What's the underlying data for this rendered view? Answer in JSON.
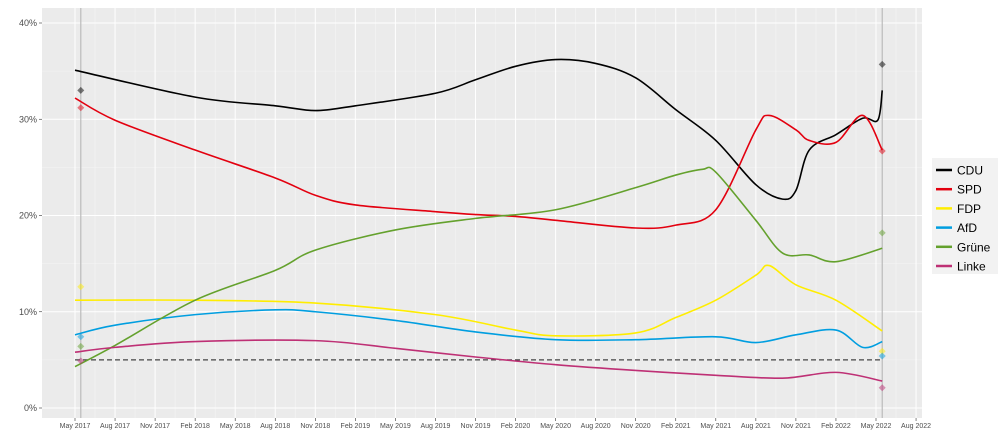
{
  "chart_data": {
    "type": "line",
    "title": "",
    "xlabel": "",
    "ylabel": "",
    "ylim": [
      0,
      40
    ],
    "yticks": [
      "0%",
      "10%",
      "20%",
      "30%",
      "40%"
    ],
    "xticks": [
      "May 2017",
      "Aug 2017",
      "Nov 2017",
      "Feb 2018",
      "May 2018",
      "Aug 2018",
      "Nov 2018",
      "Feb 2019",
      "May 2019",
      "Aug 2019",
      "Nov 2019",
      "Feb 2020",
      "May 2020",
      "Aug 2020",
      "Nov 2020",
      "Feb 2021",
      "May 2021",
      "Aug 2021",
      "Nov 2021",
      "Feb 2022",
      "May 2022",
      "Aug 2022"
    ],
    "xtick_dates": [
      "2017-05",
      "2017-08",
      "2017-11",
      "2018-02",
      "2018-05",
      "2018-08",
      "2018-11",
      "2019-02",
      "2019-05",
      "2019-08",
      "2019-11",
      "2020-02",
      "2020-05",
      "2020-08",
      "2020-11",
      "2021-02",
      "2021-05",
      "2021-08",
      "2021-11",
      "2022-02",
      "2022-05",
      "2022-08"
    ],
    "grid": true,
    "legend_position": "right",
    "threshold_line": 5,
    "election_dates": [
      "2017-05-14",
      "2022-05-15"
    ],
    "series": [
      {
        "name": "CDU",
        "color": "#000000",
        "x": [
          "2017-05",
          "2018-02",
          "2018-08",
          "2018-11",
          "2019-02",
          "2019-08",
          "2019-11",
          "2020-02",
          "2020-05",
          "2020-08",
          "2020-11",
          "2021-02",
          "2021-05",
          "2021-08",
          "2021-10",
          "2021-11",
          "2021-12",
          "2022-02",
          "2022-04",
          "2022-05-05",
          "2022-05-15"
        ],
        "y": [
          35.1,
          32.3,
          31.4,
          30.9,
          31.4,
          32.7,
          34.1,
          35.5,
          36.2,
          35.8,
          34.3,
          31.0,
          27.8,
          23.2,
          21.7,
          22.6,
          26.8,
          28.4,
          30.1,
          29.9,
          33.0
        ],
        "election_results": [
          33.0,
          35.7
        ]
      },
      {
        "name": "SPD",
        "color": "#e3000f",
        "x": [
          "2017-05",
          "2017-08",
          "2018-02",
          "2018-08",
          "2018-11",
          "2019-02",
          "2019-08",
          "2019-11",
          "2020-02",
          "2020-05",
          "2020-11",
          "2021-02",
          "2021-05",
          "2021-08",
          "2021-09",
          "2021-11",
          "2021-12",
          "2022-02",
          "2022-04",
          "2022-05-15"
        ],
        "y": [
          32.2,
          29.9,
          26.8,
          23.9,
          22.1,
          21.1,
          20.4,
          20.1,
          19.9,
          19.5,
          18.7,
          19.0,
          20.6,
          28.9,
          30.4,
          28.9,
          27.8,
          27.6,
          30.4,
          26.8
        ],
        "election_results": [
          31.2,
          26.7
        ]
      },
      {
        "name": "FDP",
        "color": "#ffed00",
        "x": [
          "2017-05",
          "2018-02",
          "2018-11",
          "2019-08",
          "2020-02",
          "2020-05",
          "2020-11",
          "2021-02",
          "2021-05",
          "2021-08",
          "2021-09",
          "2021-11",
          "2022-02",
          "2022-05-15"
        ],
        "y": [
          11.2,
          11.2,
          10.9,
          9.7,
          8.1,
          7.5,
          7.8,
          9.4,
          11.2,
          13.8,
          14.8,
          12.8,
          11.2,
          8.0
        ],
        "election_results": [
          12.6,
          5.9
        ]
      },
      {
        "name": "AfD",
        "color": "#009ee0",
        "x": [
          "2017-05",
          "2017-08",
          "2018-02",
          "2018-08",
          "2018-11",
          "2019-05",
          "2019-11",
          "2020-05",
          "2020-11",
          "2021-05",
          "2021-08",
          "2021-11",
          "2022-02",
          "2022-04",
          "2022-05-15"
        ],
        "y": [
          7.6,
          8.6,
          9.7,
          10.2,
          10.0,
          9.1,
          7.9,
          7.1,
          7.1,
          7.4,
          6.8,
          7.6,
          8.1,
          6.3,
          6.9
        ],
        "election_results": [
          7.4,
          5.4
        ]
      },
      {
        "name": "Grüne",
        "color": "#64a12d",
        "x": [
          "2017-05",
          "2017-08",
          "2018-02",
          "2018-08",
          "2018-11",
          "2019-05",
          "2019-11",
          "2020-05",
          "2020-11",
          "2021-02",
          "2021-04",
          "2021-05",
          "2021-08",
          "2021-10",
          "2021-12",
          "2022-02",
          "2022-05-15"
        ],
        "y": [
          4.3,
          6.5,
          11.2,
          14.3,
          16.4,
          18.5,
          19.7,
          20.6,
          22.9,
          24.2,
          24.8,
          24.5,
          19.5,
          16.1,
          15.9,
          15.2,
          16.6
        ],
        "election_results": [
          6.4,
          18.2
        ]
      },
      {
        "name": "Linke",
        "color": "#be3075",
        "x": [
          "2017-05",
          "2017-08",
          "2018-02",
          "2018-11",
          "2019-05",
          "2019-11",
          "2020-05",
          "2020-11",
          "2021-05",
          "2021-10",
          "2022-02",
          "2022-05-15"
        ],
        "y": [
          5.8,
          6.3,
          6.9,
          7.0,
          6.2,
          5.3,
          4.5,
          3.9,
          3.4,
          3.1,
          3.7,
          2.8
        ],
        "election_results": [
          4.9,
          2.1
        ]
      }
    ]
  }
}
